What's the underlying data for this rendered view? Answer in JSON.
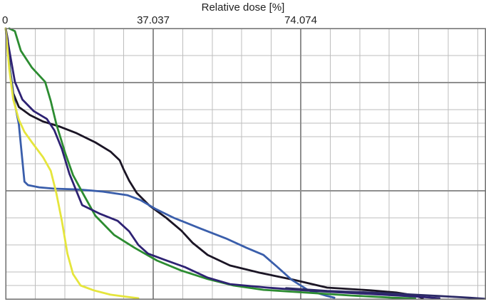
{
  "chart_data": {
    "type": "line",
    "title": "",
    "xlabel": "Relative dose [%]",
    "x_axis_position": "top",
    "ylabel": "",
    "xlim": [
      0,
      120.4
    ],
    "ylim": [
      0,
      100
    ],
    "x_ticks": [
      0,
      37.037,
      74.074
    ],
    "x_tick_labels": [
      "0",
      "37.037",
      "74.074"
    ],
    "x_minor_step": 7.407,
    "y_gridlines": [
      0,
      5,
      10,
      20,
      30,
      40,
      50,
      60,
      65,
      70,
      80,
      90,
      100
    ],
    "y_major_gridlines": [
      40,
      80
    ],
    "grid": true,
    "legend": "none",
    "series": [
      {
        "color": "#1b1525",
        "points": [
          [
            0,
            100
          ],
          [
            0.5,
            96
          ],
          [
            1.1,
            85
          ],
          [
            1.9,
            76
          ],
          [
            3.3,
            71
          ],
          [
            6.1,
            68
          ],
          [
            9.4,
            65.6
          ],
          [
            13.6,
            63.7
          ],
          [
            17.8,
            61.3
          ],
          [
            22.5,
            57.9
          ],
          [
            26.3,
            54.5
          ],
          [
            28.6,
            51.3
          ],
          [
            29.6,
            47.9
          ],
          [
            31.0,
            43.7
          ],
          [
            32.9,
            39.2
          ],
          [
            36.1,
            34.5
          ],
          [
            40.3,
            30.0
          ],
          [
            44.1,
            25.3
          ],
          [
            46.9,
            20.8
          ],
          [
            50.7,
            16.3
          ],
          [
            56.3,
            12.4
          ],
          [
            63.8,
            9.7
          ],
          [
            72.3,
            7.1
          ],
          [
            80.7,
            4.2
          ],
          [
            91.5,
            3.2
          ],
          [
            98.1,
            2.4
          ],
          [
            102.8,
            1.3
          ],
          [
            104.7,
            0.3
          ]
        ]
      },
      {
        "color": "#3a5eab",
        "points": [
          [
            0,
            100
          ],
          [
            0.9,
            87
          ],
          [
            1.9,
            75
          ],
          [
            3.3,
            64.7
          ],
          [
            4.7,
            43.4
          ],
          [
            5.6,
            42.1
          ],
          [
            8.4,
            41.3
          ],
          [
            12.2,
            40.8
          ],
          [
            18.3,
            40.5
          ],
          [
            24.4,
            39.7
          ],
          [
            30.5,
            38.4
          ],
          [
            33.8,
            36.6
          ],
          [
            37.5,
            33.4
          ],
          [
            42.2,
            30.0
          ],
          [
            48.8,
            26.1
          ],
          [
            55.3,
            22.4
          ],
          [
            60.5,
            18.9
          ],
          [
            64.7,
            16.3
          ],
          [
            68.0,
            12.1
          ],
          [
            71.8,
            7.1
          ],
          [
            76.0,
            3.2
          ],
          [
            80.7,
            1.1
          ],
          [
            82.5,
            0.5
          ]
        ]
      },
      {
        "color": "#2c8c31",
        "points": [
          [
            0.9,
            100
          ],
          [
            2.3,
            99
          ],
          [
            3.8,
            91.8
          ],
          [
            6.6,
            85.5
          ],
          [
            9.9,
            80.3
          ],
          [
            11.3,
            73.2
          ],
          [
            12.7,
            64.7
          ],
          [
            15.0,
            53.7
          ],
          [
            16.9,
            45.8
          ],
          [
            19.7,
            38.2
          ],
          [
            22.5,
            30.8
          ],
          [
            27.2,
            23.7
          ],
          [
            32.4,
            18.9
          ],
          [
            38.0,
            14.2
          ],
          [
            44.1,
            10.5
          ],
          [
            50.7,
            7.4
          ],
          [
            57.2,
            5.0
          ],
          [
            64.7,
            3.4
          ],
          [
            75.1,
            2.4
          ],
          [
            86.8,
            1.3
          ],
          [
            97.1,
            0.5
          ],
          [
            102.8,
            0.2
          ]
        ]
      },
      {
        "color": "#2e2273",
        "points": [
          [
            0,
            100
          ],
          [
            0.9,
            92
          ],
          [
            2.3,
            80.3
          ],
          [
            4.2,
            73.7
          ],
          [
            7.0,
            69.5
          ],
          [
            10.3,
            66.6
          ],
          [
            12.2,
            62.4
          ],
          [
            14.1,
            55.5
          ],
          [
            16.0,
            46.3
          ],
          [
            19.2,
            34.7
          ],
          [
            23.5,
            31.6
          ],
          [
            28.1,
            28.9
          ],
          [
            31.0,
            25.0
          ],
          [
            33.3,
            20.0
          ],
          [
            35.7,
            16.8
          ],
          [
            39.9,
            14.5
          ],
          [
            45.0,
            11.8
          ],
          [
            50.7,
            7.9
          ],
          [
            56.3,
            5.5
          ],
          [
            65.7,
            4.2
          ],
          [
            75.1,
            3.2
          ],
          [
            84.5,
            2.4
          ],
          [
            94.4,
            1.6
          ],
          [
            103.3,
            0.9
          ],
          [
            108.9,
            0.3
          ]
        ]
      },
      {
        "color": "#e5e53c",
        "points": [
          [
            0,
            100
          ],
          [
            0.9,
            85
          ],
          [
            1.9,
            73.7
          ],
          [
            3.3,
            66.3
          ],
          [
            4.7,
            61.8
          ],
          [
            6.6,
            57.9
          ],
          [
            9.4,
            52.4
          ],
          [
            11.3,
            47.4
          ],
          [
            12.7,
            39.2
          ],
          [
            14.1,
            28.9
          ],
          [
            15.5,
            16.8
          ],
          [
            16.9,
            9.2
          ],
          [
            18.8,
            5.0
          ],
          [
            22.1,
            3.2
          ],
          [
            26.3,
            1.6
          ],
          [
            30.5,
            0.8
          ],
          [
            33.3,
            0.3
          ]
        ]
      },
      {
        "color": "#2c2a66",
        "points": [
          [
            70.4,
            4.0
          ],
          [
            80.7,
            3.0
          ],
          [
            91.5,
            2.4
          ],
          [
            100.0,
            1.8
          ],
          [
            108.9,
            1.1
          ],
          [
            116.4,
            0.5
          ],
          [
            120.2,
            0.1
          ]
        ]
      }
    ]
  }
}
